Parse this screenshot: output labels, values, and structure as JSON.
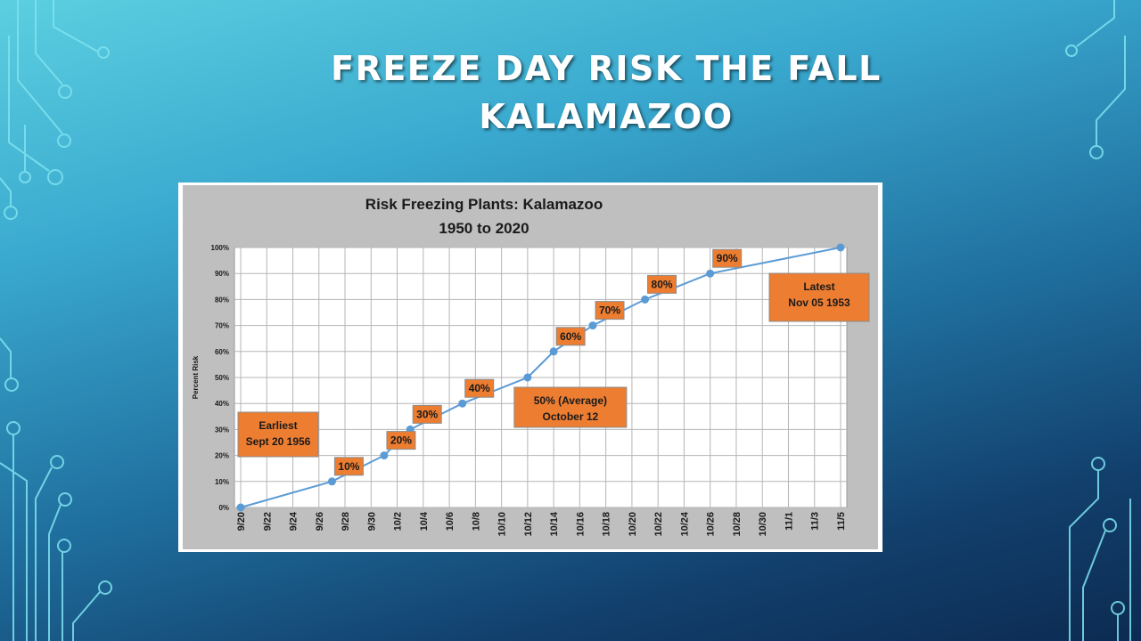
{
  "slide": {
    "title_line1": "FREEZE DAY RISK THE FALL",
    "title_line2": "KALAMAZOO"
  },
  "colors": {
    "line": "#5b9bd5",
    "callout_fill": "#ed7d31",
    "plot_background": "#bfbfbf",
    "circuit": "#7fe3f0"
  },
  "chart_data": {
    "type": "line",
    "title": "Risk Freezing Plants: Kalamazoo",
    "subtitle": "1950 to 2020",
    "ylabel": "Percent Risk",
    "xlabel": "",
    "x_ticks": [
      "9/20",
      "9/22",
      "9/24",
      "9/26",
      "9/28",
      "9/30",
      "10/2",
      "10/4",
      "10/6",
      "10/8",
      "10/10",
      "10/12",
      "10/14",
      "10/16",
      "10/18",
      "10/20",
      "10/22",
      "10/24",
      "10/26",
      "10/28",
      "10/30",
      "11/1",
      "11/3",
      "11/5"
    ],
    "y_ticks": [
      "0%",
      "10%",
      "20%",
      "30%",
      "40%",
      "50%",
      "60%",
      "70%",
      "80%",
      "90%",
      "100%"
    ],
    "ylim": [
      0,
      100
    ],
    "grid": true,
    "series": [
      {
        "x": [
          "9/20",
          "9/27",
          "10/1",
          "10/3",
          "10/7",
          "10/12",
          "10/14",
          "10/17",
          "10/21",
          "10/26",
          "11/5"
        ],
        "y": [
          0,
          10,
          20,
          30,
          40,
          50,
          60,
          70,
          80,
          90,
          100
        ]
      }
    ],
    "point_labels": [
      {
        "x": "9/27",
        "label": "10%"
      },
      {
        "x": "10/1",
        "label": "20%"
      },
      {
        "x": "10/3",
        "label": "30%"
      },
      {
        "x": "10/7",
        "label": "40%"
      },
      {
        "x": "10/14",
        "label": "60%"
      },
      {
        "x": "10/17",
        "label": "70%"
      },
      {
        "x": "10/21",
        "label": "80%"
      },
      {
        "x": "10/26",
        "label": "90%"
      }
    ],
    "annotations": [
      {
        "lines": [
          "Earliest",
          "Sept 20 1956"
        ]
      },
      {
        "lines": [
          "50% (Average)",
          "October  12"
        ]
      },
      {
        "lines": [
          "Latest",
          "Nov 05 1953"
        ]
      }
    ]
  }
}
